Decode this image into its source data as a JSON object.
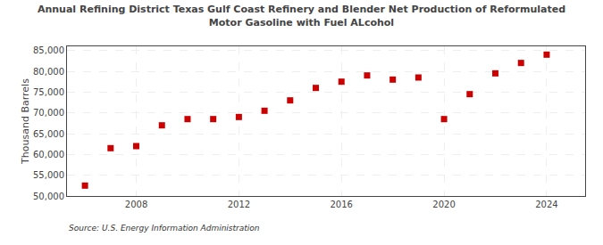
{
  "chart_data": {
    "type": "scatter",
    "title": "Annual Refining District Texas Gulf Coast Refinery and Blender Net Production of Reformulated",
    "subtitle": "Motor Gasoline with Fuel ALcohol",
    "y_label": "Thousand Barrels",
    "annotations": [
      "Source: U.S. Energy Information Administration"
    ],
    "x": [
      2006,
      2007,
      2008,
      2009,
      2010,
      2011,
      2012,
      2013,
      2014,
      2015,
      2016,
      2017,
      2018,
      2019,
      2020,
      2021,
      2022,
      2023,
      2024
    ],
    "values": [
      52500,
      61500,
      62000,
      67000,
      68500,
      68500,
      69000,
      70500,
      73000,
      76000,
      77500,
      79000,
      78000,
      78500,
      68500,
      74500,
      79500,
      82000,
      84000
    ],
    "color": "#cc0000",
    "marker": "square",
    "xlim": [
      2005.3,
      2025.5
    ],
    "xticks": [
      2008,
      2012,
      2016,
      2020,
      2024
    ],
    "ylim": [
      50000,
      86000
    ],
    "yticks": [
      {
        "value": 50000,
        "label": "50,000"
      },
      {
        "value": 55000,
        "label": "55,000"
      },
      {
        "value": 60000,
        "label": "60,000"
      },
      {
        "value": 65000,
        "label": "65,000"
      },
      {
        "value": 70000,
        "label": "70,000"
      },
      {
        "value": 75000,
        "label": "75,000"
      },
      {
        "value": 80000,
        "label": "80,000"
      },
      {
        "value": 85000,
        "label": "85,000"
      }
    ],
    "grid": true
  }
}
